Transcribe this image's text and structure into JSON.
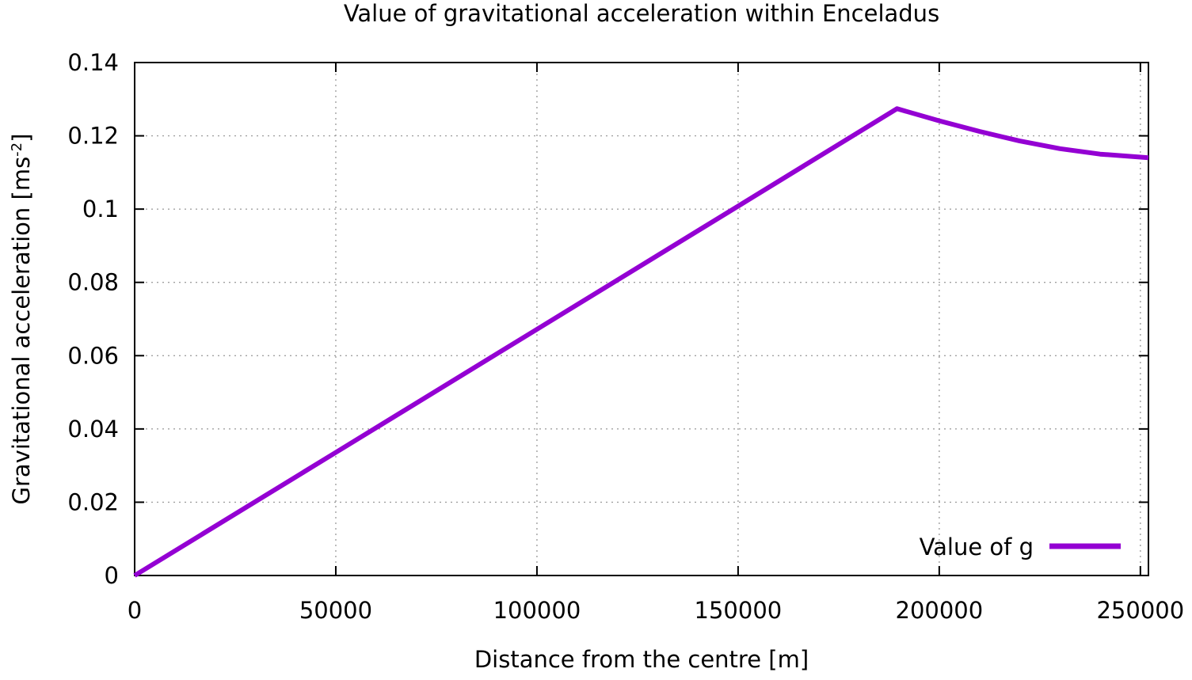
{
  "chart_data": {
    "type": "line",
    "title": "Value of gravitational acceleration within Enceladus",
    "xlabel": "Distance from the centre [m]",
    "ylabel": "Gravitational acceleration [ms",
    "ylabel_sup": "-2",
    "ylabel_end": "]",
    "xlim": [
      0,
      252000
    ],
    "ylim": [
      0,
      0.14
    ],
    "x_ticks": [
      0,
      50000,
      100000,
      150000,
      200000,
      250000
    ],
    "x_tick_labels": [
      "0",
      "50000",
      "100000",
      "150000",
      "200000",
      "250000"
    ],
    "y_ticks": [
      0,
      0.02,
      0.04,
      0.06,
      0.08,
      0.1,
      0.12,
      0.14
    ],
    "y_tick_labels": [
      "0",
      "0.02",
      "0.04",
      "0.06",
      "0.08",
      "0.1",
      "0.12",
      "0.14"
    ],
    "grid": true,
    "legend_position": "bottom-right",
    "series": [
      {
        "name": "Value of g",
        "color": "#9400d3",
        "x": [
          0,
          50000,
          100000,
          150000,
          189500,
          200000,
          210000,
          220000,
          230000,
          240000,
          252000
        ],
        "y": [
          0,
          0.0336,
          0.0672,
          0.1008,
          0.1274,
          0.1241,
          0.1212,
          0.1186,
          0.1165,
          0.115,
          0.114
        ]
      }
    ]
  }
}
